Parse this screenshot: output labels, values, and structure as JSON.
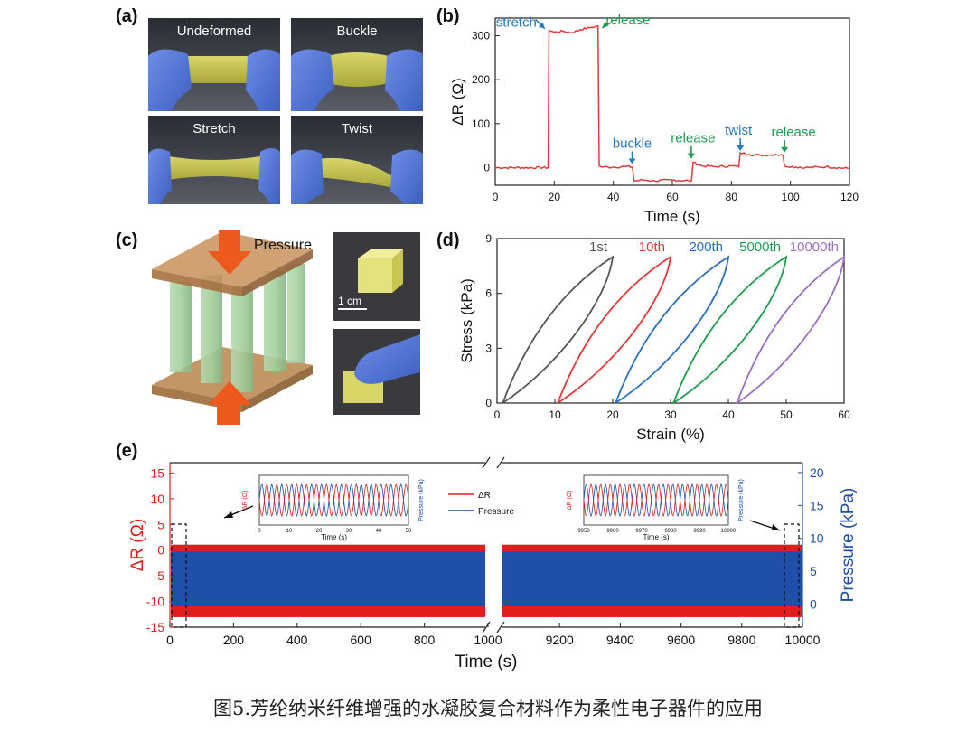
{
  "panels": {
    "a": {
      "tag": "(a)",
      "photos": [
        "Undeformed",
        "Buckle",
        "Stretch",
        "Twist"
      ]
    },
    "b": {
      "tag": "(b)"
    },
    "c": {
      "tag": "(c)",
      "pressure_label": "Pressure",
      "scale_label": "1 cm"
    },
    "d": {
      "tag": "(d)"
    },
    "e": {
      "tag": "(e)"
    }
  },
  "chart_data": [
    {
      "panel": "b",
      "type": "line",
      "xlabel": "Time (s)",
      "ylabel": "ΔR (Ω)",
      "xlim": [
        0,
        120
      ],
      "ylim": [
        -40,
        340
      ],
      "xticks": [
        0,
        20,
        40,
        60,
        80,
        100,
        120
      ],
      "yticks": [
        0,
        100,
        200,
        300
      ],
      "color": "#e03a3a",
      "series": [
        {
          "x": [
            0,
            17.9,
            18.2,
            20,
            23,
            26,
            29,
            32,
            34.8,
            35.2,
            36,
            40,
            44,
            46.5,
            47,
            50,
            54,
            60,
            66.5,
            67,
            70,
            75,
            80,
            82.5,
            83,
            86,
            90,
            95,
            97.5,
            98,
            105,
            112,
            120
          ],
          "y": [
            0,
            0,
            312,
            308,
            310,
            307,
            314,
            318,
            322,
            4,
            2,
            1,
            3,
            1,
            -30,
            -28,
            -30,
            -28,
            -30,
            12,
            4,
            2,
            4,
            2,
            34,
            30,
            28,
            30,
            28,
            4,
            0,
            2,
            -2
          ]
        }
      ],
      "annotations": [
        {
          "text": "stretch",
          "x": 18,
          "y": 312,
          "color": "#2a7ab9"
        },
        {
          "text": "release",
          "x": 35,
          "y": 322,
          "color": "#1e9c50"
        },
        {
          "text": "buckle",
          "x": 47,
          "y": 0,
          "color": "#2a7ab9"
        },
        {
          "text": "release",
          "x": 67,
          "y": 12,
          "color": "#1e9c50"
        },
        {
          "text": "twist",
          "x": 83,
          "y": 34,
          "color": "#2a7ab9"
        },
        {
          "text": "release",
          "x": 98,
          "y": 30,
          "color": "#1e9c50"
        }
      ]
    },
    {
      "panel": "d",
      "type": "line",
      "xlabel": "Strain (%)",
      "ylabel": "Stress (kPa)",
      "xlim": [
        0,
        60
      ],
      "ylim": [
        0,
        9
      ],
      "xticks": [
        0,
        10,
        20,
        30,
        40,
        50,
        60
      ],
      "yticks": [
        0,
        3,
        6,
        9
      ],
      "series": [
        {
          "name": "1st",
          "color": "#555555",
          "start": 1,
          "end": 20
        },
        {
          "name": "10th",
          "color": "#e03a3a",
          "start": 10.5,
          "end": 30
        },
        {
          "name": "200th",
          "color": "#2a6fc0",
          "start": 20.5,
          "end": 40
        },
        {
          "name": "5000th",
          "color": "#1e9c50",
          "start": 30.5,
          "end": 50
        },
        {
          "name": "10000th",
          "color": "#9c6fc0",
          "start": 41.5,
          "end": 60
        }
      ],
      "peak_stress": 8
    },
    {
      "panel": "e",
      "type": "line",
      "xlabel": "Time (s)",
      "ylabel": "ΔR (Ω)",
      "y2label": "Pressure (kPa)",
      "xticks_left": [
        0,
        200,
        400,
        600,
        800,
        1000
      ],
      "xticks_right": [
        9200,
        9400,
        9600,
        9800,
        10000
      ],
      "yticks": [
        -15,
        -10,
        -5,
        0,
        5,
        10,
        15
      ],
      "y2ticks": [
        0,
        5,
        10,
        15,
        20
      ],
      "ylim": [
        -15,
        17
      ],
      "y2lim": [
        -3.5,
        21.5
      ],
      "dr_range": [
        -12,
        0
      ],
      "pressure_range": [
        0,
        8
      ],
      "legend": [
        "ΔR",
        "Pressure"
      ],
      "colors": {
        "dr": "#e01e1e",
        "pressure": "#1f4fa8"
      },
      "insets": [
        {
          "xticks": [
            0,
            10,
            20,
            30,
            40,
            50
          ],
          "xlabel": "Time (s)",
          "ylabel": "ΔR (Ω)",
          "y2label": "Pressure (kPa)"
        },
        {
          "xticks": [
            9950,
            9960,
            9970,
            9980,
            9990,
            10000
          ],
          "xlabel": "Time (s)",
          "ylabel": "ΔR (Ω)",
          "y2label": "Pressure (kPa)"
        }
      ]
    }
  ],
  "caption": "图5.芳纶纳米纤维增强的水凝胶复合材料作为柔性电子器件的应用"
}
